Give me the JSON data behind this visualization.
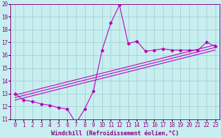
{
  "xlabel": "Windchill (Refroidissement éolien,°C)",
  "ylabel": "",
  "background_color": "#c8eef0",
  "line_color": "#bb00bb",
  "grid_color": "#99cccc",
  "x_values": [
    0,
    1,
    2,
    3,
    4,
    5,
    6,
    7,
    8,
    9,
    10,
    11,
    12,
    13,
    14,
    15,
    16,
    17,
    18,
    19,
    20,
    21,
    22,
    23
  ],
  "y_main": [
    13.0,
    12.5,
    12.4,
    12.2,
    12.1,
    11.9,
    11.8,
    10.7,
    11.8,
    13.2,
    16.4,
    18.5,
    19.9,
    16.9,
    17.1,
    16.3,
    16.4,
    16.5,
    16.4,
    16.4,
    16.4,
    16.4,
    17.0,
    16.7
  ],
  "ylim": [
    11,
    20
  ],
  "xlim": [
    -0.5,
    23.5
  ],
  "yticks": [
    11,
    12,
    13,
    14,
    15,
    16,
    17,
    18,
    19,
    20
  ],
  "xticks": [
    0,
    1,
    2,
    3,
    4,
    5,
    6,
    7,
    8,
    9,
    10,
    11,
    12,
    13,
    14,
    15,
    16,
    17,
    18,
    19,
    20,
    21,
    22,
    23
  ],
  "tick_fontsize": 5.5,
  "xlabel_fontsize": 6.0,
  "line1_start": 12.9,
  "line1_end": 16.8,
  "line2_start": 12.7,
  "line2_end": 16.6,
  "line3_start": 12.5,
  "line3_end": 16.4
}
